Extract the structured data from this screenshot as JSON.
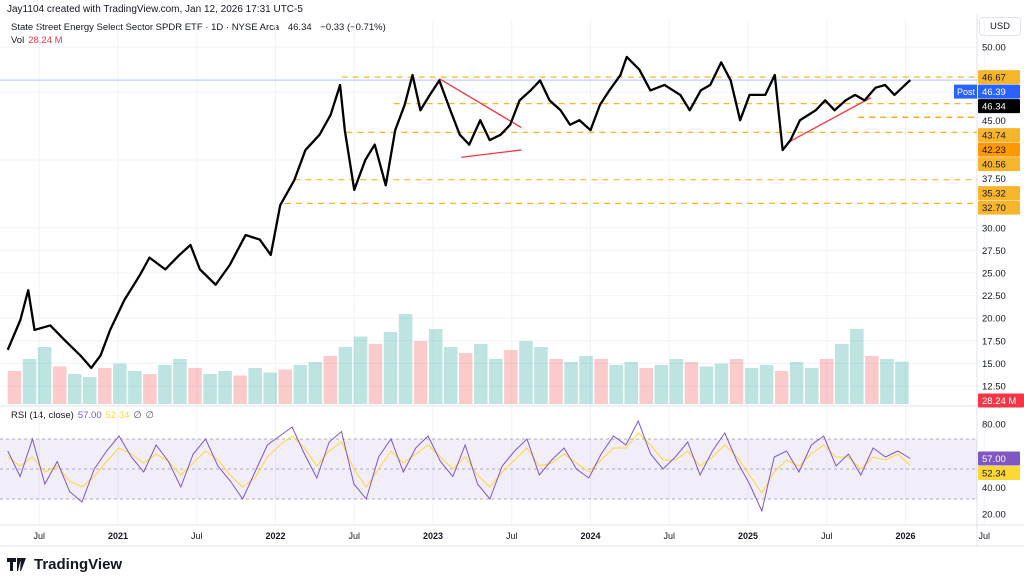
{
  "credit": "Jay1104 created with TradingView.com, Jan 12, 2026 17:31 UTC-5",
  "legend": {
    "title": "State Street Energy Select Sector SPDR ETF · 1D · NYSE Arca",
    "last": "46.34",
    "change": "−0.33 (−0.71%)"
  },
  "volume": {
    "label": "Vol",
    "value": "28.24 M",
    "badge": "28.24 M"
  },
  "rsi": {
    "label": "RSI (14, close)",
    "value": "57.00",
    "ma": "52.34",
    "na1": "∅",
    "na2": "∅"
  },
  "currency": "USD",
  "logo": "TradingView",
  "colors": {
    "price": "#000000",
    "level": "#f7b52c",
    "level_dark": "#ff9800",
    "trend": "#f23645",
    "rsi": "#7e57c2",
    "rsi_ma": "#fdd835",
    "post": "#2962ff",
    "vol_up": "#26a69a",
    "vol_down": "#ef5350"
  },
  "chart_data": {
    "type": "line",
    "title": "State Street Energy Select Sector SPDR ETF · 1D · NYSE Arca",
    "x_unit": "decimal year",
    "price": {
      "x": [
        2020.3,
        2020.38,
        2020.43,
        2020.47,
        2020.57,
        2020.66,
        2020.76,
        2020.83,
        2020.89,
        2020.95,
        2021.04,
        2021.14,
        2021.2,
        2021.3,
        2021.39,
        2021.46,
        2021.52,
        2021.62,
        2021.71,
        2021.81,
        2021.9,
        2021.97,
        2022.03,
        2022.12,
        2022.19,
        2022.28,
        2022.35,
        2022.41,
        2022.44,
        2022.5,
        2022.57,
        2022.63,
        2022.7,
        2022.76,
        2022.82,
        2022.87,
        2022.92,
        2022.98,
        2023.04,
        2023.11,
        2023.17,
        2023.23,
        2023.3,
        2023.36,
        2023.43,
        2023.49,
        2023.55,
        2023.62,
        2023.68,
        2023.74,
        2023.81,
        2023.87,
        2023.93,
        2024.0,
        2024.06,
        2024.12,
        2024.19,
        2024.23,
        2024.31,
        2024.38,
        2024.47,
        2024.57,
        2024.63,
        2024.7,
        2024.76,
        2024.83,
        2024.89,
        2024.95,
        2025.01,
        2025.11,
        2025.17,
        2025.22,
        2025.27,
        2025.33,
        2025.43,
        2025.49,
        2025.55,
        2025.62,
        2025.68,
        2025.74,
        2025.81,
        2025.87,
        2025.93,
        2026.03
      ],
      "y": [
        16.5,
        19.8,
        23.1,
        18.7,
        19.2,
        17.6,
        15.9,
        14.5,
        15.9,
        18.7,
        22.0,
        24.8,
        26.7,
        25.4,
        27.0,
        28.1,
        25.4,
        23.7,
        25.9,
        29.2,
        28.7,
        27.0,
        32.5,
        35.3,
        38.6,
        40.3,
        42.5,
        45.8,
        40.8,
        34.2,
        37.5,
        39.2,
        34.7,
        40.8,
        43.6,
        46.9,
        43.0,
        44.7,
        46.3,
        43.0,
        40.3,
        39.2,
        41.9,
        39.7,
        40.3,
        41.4,
        44.1,
        45.2,
        46.3,
        44.1,
        43.0,
        41.4,
        41.9,
        40.8,
        43.6,
        45.2,
        46.9,
        48.9,
        47.5,
        45.2,
        45.8,
        44.7,
        43.0,
        45.2,
        45.8,
        48.3,
        46.3,
        41.9,
        44.7,
        44.7,
        46.9,
        38.6,
        39.7,
        41.9,
        43.0,
        44.1,
        43.0,
        44.1,
        44.7,
        44.1,
        45.5,
        45.8,
        44.7,
        46.34
      ]
    },
    "y_ticks": [
      "50.00",
      "45.00",
      "37.50",
      "30.00",
      "27.50",
      "25.00",
      "22.50",
      "20.00",
      "17.50",
      "15.00",
      "12.50"
    ],
    "y_tick_values": [
      50,
      45,
      37.5,
      30,
      27.5,
      25,
      22.5,
      20,
      17.5,
      15,
      12.5
    ],
    "ylim": [
      12.5,
      50
    ],
    "x_ticks": [
      "Jul",
      "2021",
      "Jul",
      "2022",
      "Jul",
      "2023",
      "Jul",
      "2024",
      "Jul",
      "2025",
      "Jul",
      "2026",
      "Jul"
    ],
    "x_tick_values": [
      2020.5,
      2021,
      2021.5,
      2022,
      2022.5,
      2023,
      2023.5,
      2024,
      2024.5,
      2025,
      2025.5,
      2026,
      2026.5
    ],
    "levels": [
      {
        "price": 46.67,
        "label": "46.67",
        "from": 2022.42,
        "dark": false
      },
      {
        "price": 43.74,
        "label": "43.74",
        "from": 2022.75,
        "dark": false
      },
      {
        "price": 42.23,
        "label": "42.23",
        "from": 2025.7,
        "dark": true
      },
      {
        "price": 40.56,
        "label": "40.56",
        "from": 2022.45,
        "dark": false
      },
      {
        "price": 35.32,
        "label": "35.32",
        "from": 2022.12,
        "dark": false
      },
      {
        "price": 32.7,
        "label": "32.70",
        "from": 2022.06,
        "dark": false
      }
    ],
    "trendlines": [
      {
        "x1": 2023.04,
        "y1": 46.5,
        "x2": 2023.56,
        "y2": 41.1
      },
      {
        "x1": 2023.18,
        "y1": 37.8,
        "x2": 2023.56,
        "y2": 38.6
      },
      {
        "x1": 2025.25,
        "y1": 39.4,
        "x2": 2025.78,
        "y2": 44.4
      }
    ],
    "last_price": {
      "value": 46.34,
      "label": "46.34"
    },
    "post_price": {
      "tag": "Post",
      "value": 46.39,
      "label": "46.39"
    },
    "volume_M": [
      22,
      30,
      38,
      25,
      20,
      18,
      24,
      27,
      22,
      20,
      26,
      30,
      24,
      20,
      22,
      19,
      24,
      21,
      23,
      26,
      28,
      32,
      38,
      45,
      40,
      48,
      60,
      42,
      50,
      38,
      34,
      40,
      30,
      36,
      42,
      38,
      30,
      28,
      32,
      30,
      26,
      28,
      24,
      26,
      30,
      28,
      25,
      27,
      30,
      24,
      26,
      22,
      28,
      24,
      30,
      40,
      50,
      32,
      30,
      28.24
    ],
    "rsi": {
      "ticks": [
        "80.00",
        "40.00",
        "20.00"
      ],
      "tick_values": [
        80,
        40,
        20
      ],
      "bands": [
        70,
        50,
        30
      ],
      "values": [
        62,
        45,
        70,
        40,
        55,
        35,
        28,
        50,
        62,
        72,
        58,
        48,
        66,
        55,
        38,
        60,
        70,
        52,
        42,
        30,
        48,
        66,
        72,
        78,
        60,
        44,
        68,
        75,
        40,
        30,
        58,
        70,
        48,
        64,
        72,
        55,
        45,
        66,
        40,
        30,
        52,
        62,
        70,
        46,
        56,
        64,
        50,
        44,
        60,
        72,
        66,
        82,
        60,
        50,
        58,
        68,
        46,
        62,
        74,
        55,
        40,
        22,
        58,
        62,
        48,
        66,
        72,
        52,
        60,
        46,
        64,
        58,
        62,
        57
      ],
      "ma": [
        58,
        52,
        58,
        48,
        52,
        42,
        38,
        45,
        55,
        64,
        60,
        54,
        60,
        55,
        46,
        54,
        62,
        56,
        46,
        38,
        44,
        58,
        66,
        72,
        64,
        52,
        62,
        68,
        50,
        38,
        50,
        62,
        54,
        60,
        66,
        58,
        50,
        58,
        46,
        38,
        48,
        56,
        64,
        52,
        54,
        60,
        54,
        48,
        56,
        64,
        64,
        74,
        66,
        56,
        56,
        62,
        52,
        58,
        66,
        58,
        46,
        34,
        48,
        56,
        52,
        60,
        66,
        58,
        58,
        50,
        58,
        56,
        60,
        52.34
      ]
    }
  }
}
